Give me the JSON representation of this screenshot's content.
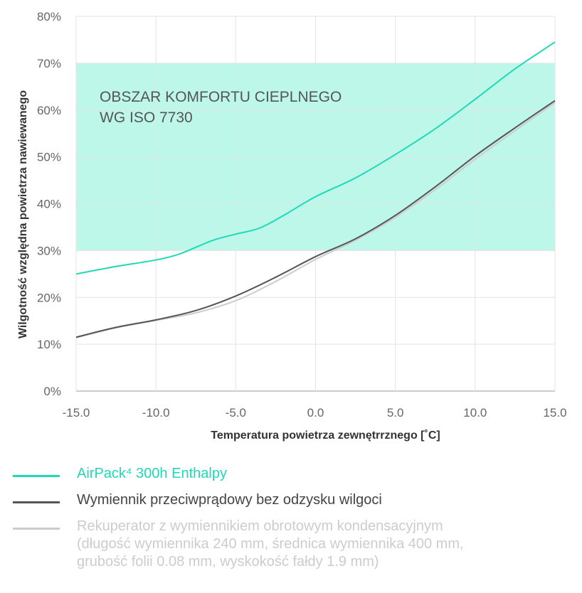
{
  "chart_data": {
    "type": "line",
    "xlabel": "Temperatura powietrza zewnętrrznego [˚C]",
    "ylabel": "Wilgotność względna powietrza nawiewanego",
    "xlim": [
      -15,
      15
    ],
    "ylim": [
      0,
      80
    ],
    "x_ticks": [
      "-15.0",
      "-10.0",
      "-5.0",
      "0.0",
      "5.0",
      "10.0",
      "15.0"
    ],
    "y_ticks": [
      "0%",
      "10%",
      "20%",
      "30%",
      "40%",
      "50%",
      "60%",
      "70%",
      "80%"
    ],
    "grid": true,
    "comfort_zone": {
      "y_range": [
        30,
        70
      ],
      "label_line1": "OBSZAR KOMFORTU CIEPLNEGO",
      "label_line2": "WG ISO 7730",
      "color": "#bdf7ea"
    },
    "series": [
      {
        "name": "AirPack⁴ 300h Enthalpy",
        "color": "#1fd9b6",
        "x": [
          -15,
          -12.5,
          -10,
          -8.5,
          -6.5,
          -5,
          -3.5,
          -2,
          0,
          2.5,
          5,
          7.5,
          10,
          12.5,
          15
        ],
        "y": [
          25,
          26.6,
          28,
          29.3,
          32.1,
          33.5,
          34.8,
          37.5,
          41.5,
          45.5,
          50.5,
          56,
          62.3,
          68.8,
          74.5
        ]
      },
      {
        "name": "Wymiennik przeciwprądowy bez odzysku wilgoci",
        "color": "#555555",
        "x": [
          -15,
          -12.5,
          -10,
          -7.5,
          -5,
          -2.5,
          0,
          2.5,
          5,
          7.5,
          10,
          12.5,
          15
        ],
        "y": [
          11.5,
          13.6,
          15.2,
          17.2,
          20.3,
          24.3,
          28.7,
          32.5,
          37.5,
          43.6,
          50.2,
          56.2,
          62
        ]
      },
      {
        "name": "Rekuperator z wymiennikiem obrotowym kondensacyjnym",
        "name_line2": "(długość wymiennika 240 mm, średnica wymiennika 400 mm,",
        "name_line3": "grubość folii 0.08 mm, wyskokość fałdy 1.9 mm)",
        "color": "#cccccc",
        "x": [
          -15,
          -12.5,
          -10,
          -7.5,
          -5,
          -2.5,
          0,
          2.5,
          5,
          7.5,
          10,
          12.5,
          15
        ],
        "y": [
          11.4,
          13.5,
          15.1,
          16.7,
          19.3,
          23.4,
          28.1,
          32.2,
          37.1,
          43,
          49.5,
          55.6,
          61.6
        ]
      }
    ]
  }
}
